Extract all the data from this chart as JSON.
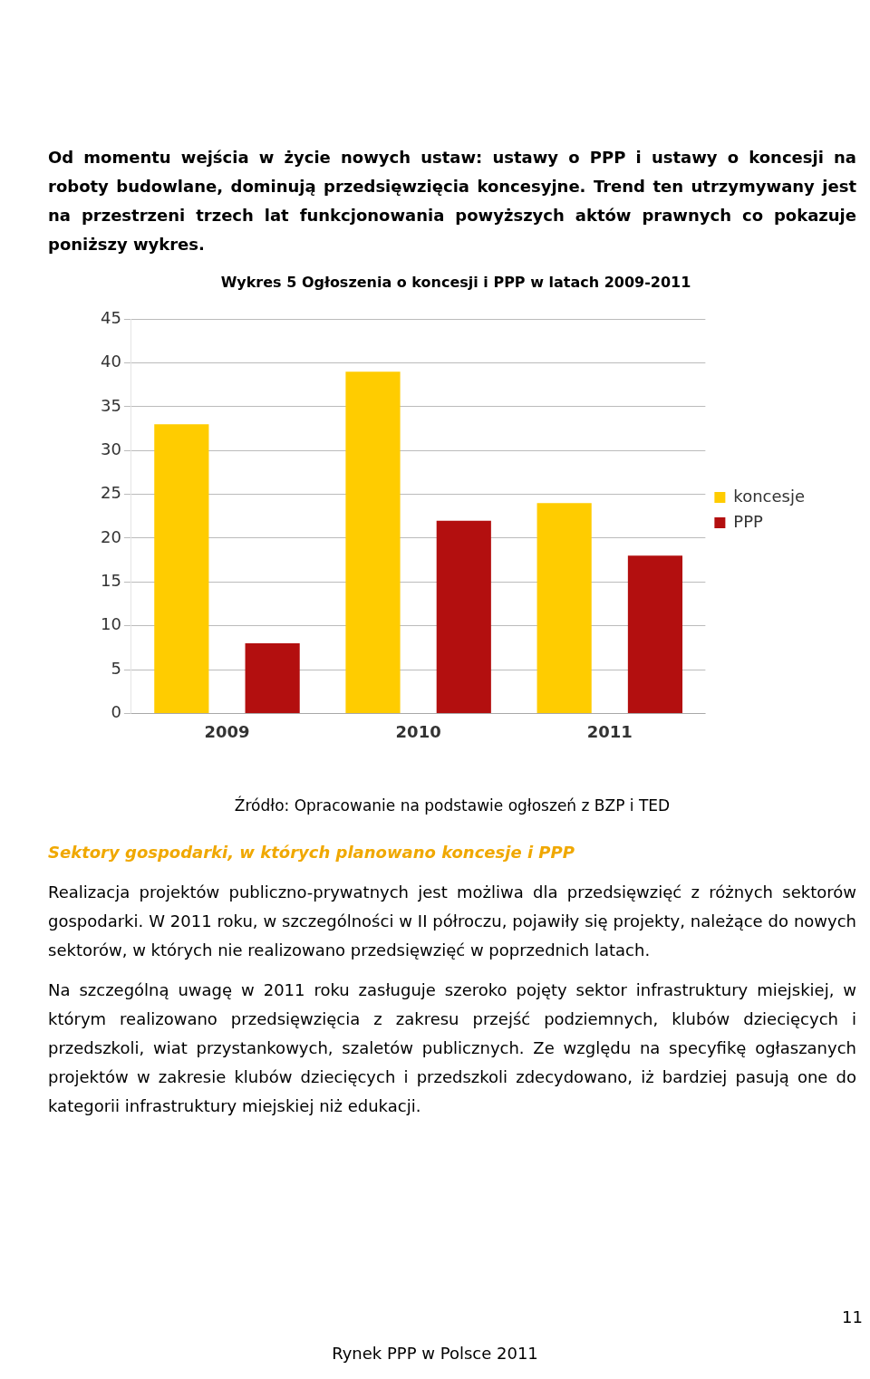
{
  "chart_data": {
    "type": "bar",
    "title": "Wykres 5 Ogłoszenia o koncesji i PPP w latach 2009-2011",
    "categories": [
      "2009",
      "2010",
      "2011"
    ],
    "series": [
      {
        "name": "koncesje",
        "color": "#ffcc00",
        "values": [
          33,
          39,
          24
        ]
      },
      {
        "name": "PPP",
        "color": "#b30f0f",
        "values": [
          8,
          22,
          18
        ]
      }
    ],
    "ylim": [
      0,
      45
    ],
    "yticks": [
      0,
      5,
      10,
      15,
      20,
      25,
      30,
      35,
      40,
      45
    ],
    "grid": "y",
    "legend": "right",
    "annotations": [
      "Od momentu wejścia w życie nowych ustaw: ustawy o PPP i ustawy o koncesji na roboty budowlane, dominują przedsięwzięcia koncesyjne. Trend ten utrzymywany jest na przestrzeni trzech lat funkcjonowania powyższych aktów prawnych co pokazuje poniższy wykres.",
      "Źródło: Opracowanie na podstawie ogłoszeń z BZP i TED",
      "Sektory gospodarki, w których planowano koncesje i PPP",
      "Realizacja projektów publiczno-prywatnych jest możliwa dla przedsięwzięć z różnych sektorów gospodarki. W 2011 roku, w szczególności w II półroczu, pojawiły się projekty, należące do nowych sektorów, w których nie realizowano przedsięwzięć w poprzednich latach.",
      "Na szczególną uwagę w 2011 roku zasługuje szeroko pojęty sektor infrastruktury miejskiej, w którym realizowano przedsięwzięcia z zakresu przejść podziemnych, klubów dziecięcych i przedszkoli, wiat przystankowych, szaletów publicznych. Ze względu na specyfikę ogłaszanych projektów w zakresie klubów dziecięcych i przedszkoli zdecydowano, iż bardziej pasują one do kategorii infrastruktury miejskiej niż edukacji.",
      "11",
      "Rynek PPP w Polsce 2011"
    ]
  }
}
